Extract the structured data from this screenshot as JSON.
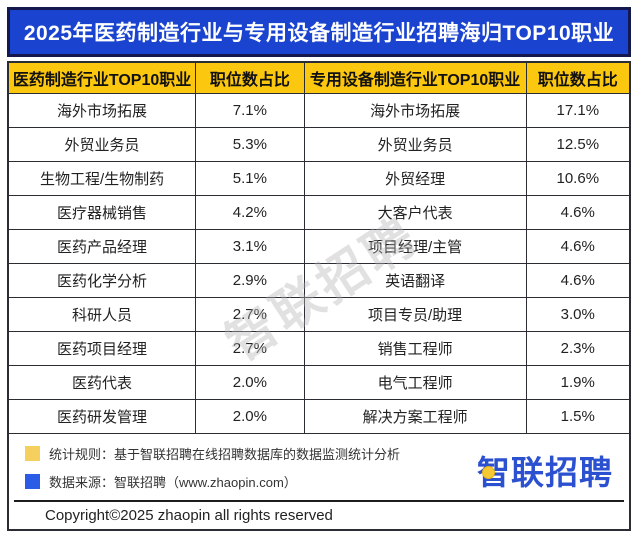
{
  "title": "2025年医药制造行业与专用设备制造行业招聘海归TOP10职业",
  "chart_data": {
    "type": "table",
    "title": "2025年医药制造行业与专用设备制造行业招聘海归TOP10职业",
    "columns": [
      "医药制造行业TOP10职业",
      "职位数占比",
      "专用设备制造行业TOP10职业",
      "职位数占比"
    ],
    "rows": [
      [
        "海外市场拓展",
        "7.1%",
        "海外市场拓展",
        "17.1%"
      ],
      [
        "外贸业务员",
        "5.3%",
        "外贸业务员",
        "12.5%"
      ],
      [
        "生物工程/生物制药",
        "5.1%",
        "外贸经理",
        "10.6%"
      ],
      [
        "医疗器械销售",
        "4.2%",
        "大客户代表",
        "4.6%"
      ],
      [
        "医药产品经理",
        "3.1%",
        "项目经理/主管",
        "4.6%"
      ],
      [
        "医药化学分析",
        "2.9%",
        "英语翻译",
        "4.6%"
      ],
      [
        "科研人员",
        "2.7%",
        "项目专员/助理",
        "3.0%"
      ],
      [
        "医药项目经理",
        "2.7%",
        "销售工程师",
        "2.3%"
      ],
      [
        "医药代表",
        "2.0%",
        "电气工程师",
        "1.9%"
      ],
      [
        "医药研发管理",
        "2.0%",
        "解决方案工程师",
        "1.5%"
      ]
    ],
    "series": [
      {
        "name": "医药制造行业职位数占比",
        "values": [
          7.1,
          5.3,
          5.1,
          4.2,
          3.1,
          2.9,
          2.7,
          2.7,
          2.0,
          2.0
        ]
      },
      {
        "name": "专用设备制造行业职位数占比",
        "values": [
          17.1,
          12.5,
          10.6,
          4.6,
          4.6,
          4.6,
          3.0,
          2.3,
          1.9,
          1.5
        ]
      }
    ]
  },
  "footer": {
    "note1": "统计规则：基于智联招聘在线招聘数据库的数据监测统计分析",
    "note2": "数据来源：智联招聘（www.zhaopin.com）",
    "logo_text": "智联招聘",
    "copyright": "Copyright©2025 zhaopin all rights reserved"
  },
  "watermark": "智联招聘",
  "colors": {
    "title_bg": "#1a44cf",
    "frame_navy": "#14184d",
    "header_bg": "#fcc70f",
    "border_dark": "#2a2d34",
    "logo_blue": "#2b50d0",
    "logo_dot": "#f6c833",
    "bullet_yellow": "#f6d05e",
    "bullet_blue": "#2b5ce6",
    "watermark": "#b5b5b5"
  }
}
